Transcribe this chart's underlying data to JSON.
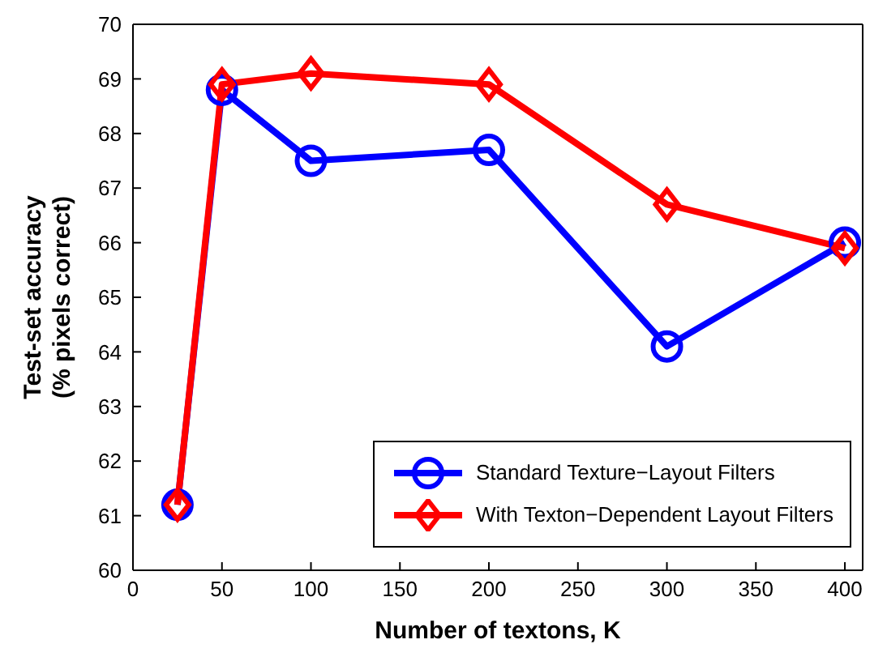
{
  "chart_data": {
    "type": "line",
    "xlabel": "Number of textons, K",
    "ylabel": "Test-set accuracy\n(% pixels correct)",
    "x": [
      25,
      50,
      100,
      200,
      300,
      400
    ],
    "xlim": [
      0,
      410
    ],
    "xticks": [
      0,
      50,
      100,
      150,
      200,
      250,
      300,
      350,
      400
    ],
    "ylim": [
      60,
      70
    ],
    "yticks": [
      60,
      61,
      62,
      63,
      64,
      65,
      66,
      67,
      68,
      69,
      70
    ],
    "grid": false,
    "legend": "bottom right",
    "line_style": "solid",
    "series": [
      {
        "name": "Standard Texture−Layout Filters",
        "color": "#0000ff",
        "marker": "circle",
        "values": [
          61.2,
          68.8,
          67.5,
          67.7,
          64.1,
          66.0
        ]
      },
      {
        "name": "With Texton−Dependent Layout Filters",
        "color": "#ff0000",
        "marker": "diamond",
        "values": [
          61.2,
          68.9,
          69.1,
          68.9,
          66.7,
          65.9
        ]
      }
    ]
  }
}
